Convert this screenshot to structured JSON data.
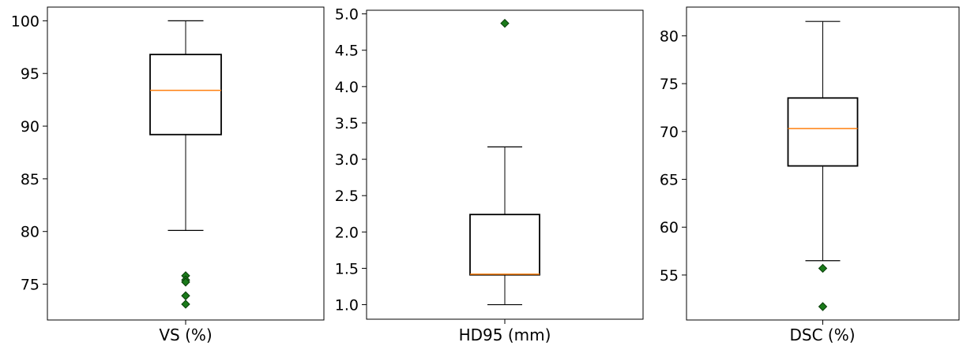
{
  "chart_data": [
    {
      "type": "box",
      "xlabel": "VS (%)",
      "ylim": [
        71.6,
        101.3
      ],
      "yticks": [
        75,
        80,
        85,
        90,
        95,
        100
      ],
      "ytick_labels": [
        "75",
        "80",
        "85",
        "90",
        "95",
        "100"
      ],
      "box": {
        "whisker_low": 80.1,
        "q1": 89.2,
        "median": 93.4,
        "q3": 96.8,
        "whisker_high": 100.0
      },
      "outliers": [
        75.8,
        75.4,
        75.2,
        73.9,
        73.1
      ],
      "grid": false
    },
    {
      "type": "box",
      "xlabel": "HD95 (mm)",
      "ylim": [
        0.8,
        5.05
      ],
      "yticks": [
        1.0,
        1.5,
        2.0,
        2.5,
        3.0,
        3.5,
        4.0,
        4.5,
        5.0
      ],
      "ytick_labels": [
        "1.0",
        "1.5",
        "2.0",
        "2.5",
        "3.0",
        "3.5",
        "4.0",
        "4.5",
        "5.0"
      ],
      "box": {
        "whisker_low": 1.0,
        "q1": 1.41,
        "median": 1.42,
        "q3": 2.24,
        "whisker_high": 3.17
      },
      "outliers": [
        4.87
      ],
      "grid": false
    },
    {
      "type": "box",
      "xlabel": "DSC (%)",
      "ylim": [
        50.3,
        83.0
      ],
      "yticks": [
        55,
        60,
        65,
        70,
        75,
        80
      ],
      "ytick_labels": [
        "55",
        "60",
        "65",
        "70",
        "75",
        "80"
      ],
      "box": {
        "whisker_low": 56.5,
        "q1": 66.4,
        "median": 70.3,
        "q3": 73.5,
        "whisker_high": 81.5
      },
      "outliers": [
        55.7,
        51.7
      ],
      "grid": false
    }
  ],
  "colors": {
    "median": "#ff7f0e",
    "outlier_fill": "#1a7a1a",
    "outlier_edge": "#0a3d0a",
    "box_edge": "#000000"
  }
}
